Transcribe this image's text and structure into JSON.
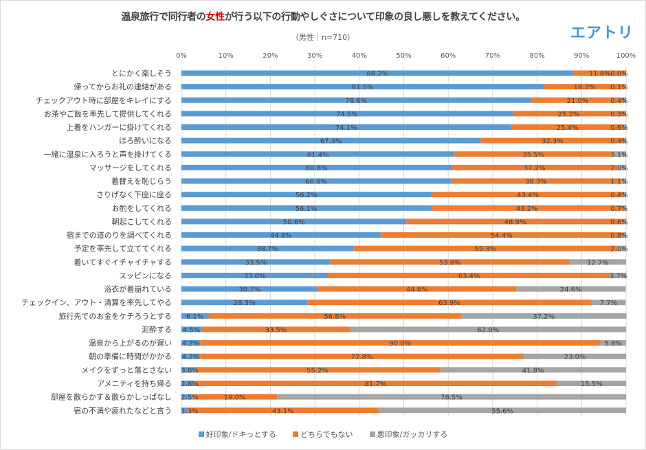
{
  "header": {
    "title_pre": "温泉旅行で同行者の",
    "title_highlight": "女性",
    "title_post": "が行う以下の行動やしぐさについて印象の良し悪しを教えてください。",
    "subtitle": "（男性｜n=710）",
    "logo": "エアトリ"
  },
  "chart_data": {
    "type": "bar",
    "orientation": "horizontal",
    "stacked": "100%",
    "title": "温泉旅行で同行者の女性が行う以下の行動やしぐさについて印象の良し悪しを教えてください。",
    "subtitle": "（男性｜n=710）",
    "xlim": [
      0,
      100
    ],
    "xticks": [
      "0%",
      "10%",
      "20%",
      "30%",
      "40%",
      "50%",
      "60%",
      "70%",
      "80%",
      "90%",
      "100%"
    ],
    "grid": true,
    "legend_position": "bottom",
    "categories": [
      "とにかく楽しそう",
      "帰ってからお礼の連絡がある",
      "チェックアウト時に部屋をキレイにする",
      "お茶やご飯を率先して提供してくれる",
      "上着をハンガーに掛けてくれる",
      "ほろ酔いになる",
      "一緒に温泉に入ろうと声を掛けてくる",
      "マッサージをしてくれる",
      "着替えを恥じらう",
      "さりげなく下座に座る",
      "お酌をしてくれる",
      "朝起こしてくれる",
      "宿までの道のりを調べてくれる",
      "予定を率先して立ててくれる",
      "着いてすぐイチャイチャする",
      "スッピンになる",
      "浴衣が着崩れている",
      "チェックイン、アウト・清算を率先してやる",
      "旅行先でのお金をケチろうとする",
      "泥酔する",
      "温泉から上がるのが遅い",
      "朝の準備に時間がかかる",
      "メイクをずっと落とさない",
      "アメニティを持ち帰る",
      "部屋を散らかす＆散らかしっぱなし",
      "宿の不満や疲れたなどと言う"
    ],
    "series": [
      {
        "name": "好印象/ドキっとする",
        "color": "#5b9bd5",
        "values": [
          88.2,
          81.5,
          78.6,
          74.5,
          74.1,
          67.3,
          61.4,
          60.8,
          60.6,
          56.2,
          56.1,
          50.6,
          44.8,
          38.7,
          33.5,
          33.0,
          30.7,
          28.3,
          6.1,
          4.5,
          4.2,
          4.2,
          3.0,
          2.8,
          2.5,
          1.3
        ]
      },
      {
        "name": "どちらでもない",
        "color": "#ed7d31",
        "values": [
          11.8,
          18.3,
          21.0,
          25.2,
          25.4,
          32.3,
          35.5,
          37.2,
          38.3,
          43.4,
          43.2,
          48.9,
          54.4,
          59.3,
          53.8,
          63.4,
          44.6,
          63.9,
          56.8,
          33.5,
          90.0,
          72.8,
          55.2,
          81.7,
          19.0,
          43.1
        ]
      },
      {
        "name": "悪印象/ガッカリする",
        "color": "#a5a5a5",
        "values": [
          0.0,
          0.1,
          0.4,
          0.3,
          0.6,
          0.4,
          3.1,
          2.0,
          1.1,
          0.4,
          0.7,
          0.6,
          0.8,
          2.0,
          12.7,
          3.7,
          24.6,
          7.7,
          37.2,
          62.0,
          5.8,
          23.0,
          41.8,
          15.5,
          78.5,
          55.6
        ]
      }
    ]
  }
}
